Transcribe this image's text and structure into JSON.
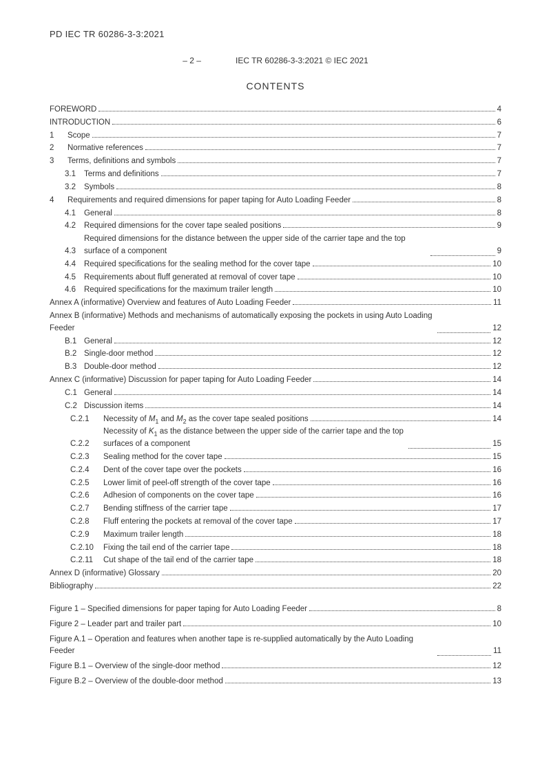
{
  "doc_id_top": "PD IEC TR 60286-3-3:2021",
  "header": {
    "page_marker": "– 2 –",
    "right": "IEC TR 60286-3-3:2021 © IEC 2021"
  },
  "contents_title": "CONTENTS",
  "entries": [
    {
      "lvl": 0,
      "num": "",
      "text": "FOREWORD",
      "page": "4"
    },
    {
      "lvl": 0,
      "num": "",
      "text": "INTRODUCTION",
      "page": "6"
    },
    {
      "lvl": 1,
      "num": "1",
      "text": "Scope",
      "page": "7"
    },
    {
      "lvl": 1,
      "num": "2",
      "text": "Normative references",
      "page": "7"
    },
    {
      "lvl": 1,
      "num": "3",
      "text": "Terms, definitions and symbols",
      "page": "7"
    },
    {
      "lvl": 2,
      "num": "3.1",
      "text": "Terms and definitions",
      "page": "7"
    },
    {
      "lvl": 2,
      "num": "3.2",
      "text": "Symbols",
      "page": "8"
    },
    {
      "lvl": 1,
      "num": "4",
      "text": "Requirements and required dimensions for paper taping for Auto Loading Feeder",
      "page": "8"
    },
    {
      "lvl": 2,
      "num": "4.1",
      "text": "General",
      "page": "8"
    },
    {
      "lvl": 2,
      "num": "4.2",
      "text": "Required dimensions for the cover tape sealed positions",
      "page": "9"
    },
    {
      "lvl": 2,
      "num": "4.3",
      "text": "Required dimensions for the distance between the upper side of the carrier tape and the top surface of a component",
      "page": "9",
      "wrap": true
    },
    {
      "lvl": 2,
      "num": "4.4",
      "text": "Required specifications for the sealing method for the cover tape",
      "page": "10"
    },
    {
      "lvl": 2,
      "num": "4.5",
      "text": "Requirements about fluff generated at removal of cover tape",
      "page": "10"
    },
    {
      "lvl": 2,
      "num": "4.6",
      "text": "Required specifications for the maximum trailer length",
      "page": "10"
    },
    {
      "lvl": 0,
      "num": "",
      "text": "Annex A (informative)   Overview and features of Auto Loading Feeder",
      "page": "11"
    },
    {
      "lvl": 0,
      "num": "",
      "text": "Annex B (informative)   Methods and mechanisms of automatically exposing  the pockets in using Auto Loading Feeder",
      "page": "12",
      "wrap": true,
      "wrapIndent": 48
    },
    {
      "lvl": 2,
      "num": "B.1",
      "text": "General",
      "page": "12"
    },
    {
      "lvl": 2,
      "num": "B.2",
      "text": "Single-door method",
      "page": "12"
    },
    {
      "lvl": 2,
      "num": "B.3",
      "text": "Double-door method",
      "page": "12"
    },
    {
      "lvl": 0,
      "num": "",
      "text": "Annex C (informative)   Discussion for paper taping for Auto Loading Feeder",
      "page": "14"
    },
    {
      "lvl": 2,
      "num": "C.1",
      "text": "General",
      "page": "14"
    },
    {
      "lvl": 2,
      "num": "C.2",
      "text": "Discussion items",
      "page": "14"
    },
    {
      "lvl": 3,
      "num": "C.2.1",
      "html": "Necessity of <em>M</em><sub>1</sub> and <em>M</em><sub>2</sub> as the cover tape sealed positions",
      "page": "14"
    },
    {
      "lvl": 3,
      "num": "C.2.2",
      "html": "Necessity of <em>K</em><sub>1</sub> as the distance between the upper side of the carrier tape and the top surfaces of a component",
      "page": "15",
      "wrap": true
    },
    {
      "lvl": 3,
      "num": "C.2.3",
      "text": "Sealing method for the cover tape",
      "page": "15"
    },
    {
      "lvl": 3,
      "num": "C.2.4",
      "text": "Dent of the cover tape over the pockets",
      "page": "16"
    },
    {
      "lvl": 3,
      "num": "C.2.5",
      "text": "Lower limit of peel-off strength of the cover tape",
      "page": "16"
    },
    {
      "lvl": 3,
      "num": "C.2.6",
      "text": "Adhesion of components on the cover tape",
      "page": "16"
    },
    {
      "lvl": 3,
      "num": "C.2.7",
      "text": "Bending stiffness of the carrier tape",
      "page": "17"
    },
    {
      "lvl": 3,
      "num": "C.2.8",
      "text": "Fluff entering the pockets at removal of the cover tape",
      "page": "17"
    },
    {
      "lvl": 3,
      "num": "C.2.9",
      "text": "Maximum trailer length",
      "page": "18"
    },
    {
      "lvl": 3,
      "num": "C.2.10",
      "text": "Fixing the tail end of the carrier tape",
      "page": "18"
    },
    {
      "lvl": 3,
      "num": "C.2.11",
      "text": "Cut shape of the tail end of the carrier tape",
      "page": "18"
    },
    {
      "lvl": 0,
      "num": "",
      "text": "Annex D (informative)   Glossary",
      "page": "20"
    },
    {
      "lvl": 0,
      "num": "",
      "text": "Bibliography",
      "page": "22"
    }
  ],
  "figures": [
    {
      "text": "Figure 1 – Specified dimensions for paper taping for Auto Loading Feeder",
      "page": "8"
    },
    {
      "text": "Figure 2 – Leader part and trailer part",
      "page": "10"
    },
    {
      "text": "Figure A.1 – Operation and features when another tape is  re-supplied automatically by the Auto Loading Feeder",
      "page": "11",
      "wrap": true
    },
    {
      "text": "Figure B.1 – Overview of the single-door method",
      "page": "12"
    },
    {
      "text": "Figure B.2 – Overview of the double-door method",
      "page": "13"
    }
  ]
}
